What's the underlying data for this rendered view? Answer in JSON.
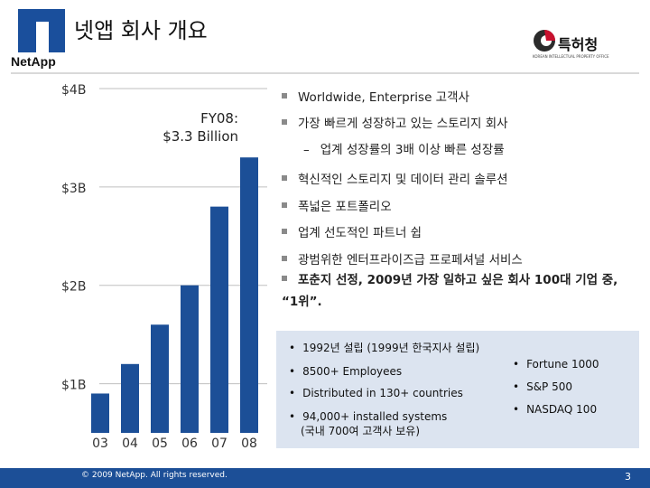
{
  "header": {
    "title": "넷앱 회사 개요",
    "logo_text": "NetApp",
    "partner_logo_text": "특허청",
    "partner_logo_sub": "KOREAN INTELLECTUAL PROPERTY OFFICE"
  },
  "chart_data": {
    "type": "bar",
    "categories": [
      "03",
      "04",
      "05",
      "06",
      "07",
      "08"
    ],
    "values": [
      0.9,
      1.2,
      1.6,
      2.0,
      2.8,
      3.3
    ],
    "ylim": [
      0.5,
      4.0
    ],
    "ytick_labels": [
      "$1B",
      "$2B",
      "$3B",
      "$4B"
    ],
    "ytick_values": [
      1,
      2,
      3,
      4
    ],
    "annotation": "FY08:\n$3.3 Billion",
    "annotation_line1": "FY08:",
    "annotation_line2": "$3.3 Billion",
    "bar_color": "#1c4f97",
    "grid": true
  },
  "bullets": [
    {
      "text": "Worldwide, Enterprise 고객사",
      "type": "main"
    },
    {
      "text": "가장 빠르게 성장하고 있는 스토리지 회사",
      "type": "main"
    },
    {
      "text": "업계 성장률의 3배 이상 빠른 성장률",
      "type": "sub",
      "marker": "–"
    },
    {
      "text": "혁신적인 스토리지 및 데이터 관리 솔루션",
      "type": "main"
    },
    {
      "text": "폭넓은 포트폴리오",
      "type": "main"
    },
    {
      "text": "업계 선도적인 파트너 쉽",
      "type": "main"
    },
    {
      "text": "광범위한 엔터프라이즈급 프로페셔널 서비스",
      "type": "main"
    },
    {
      "text": "포춘지 선정, 2009년 가장 일하고 싶은 회사 100대 기업 중, “1위”.",
      "type": "bold"
    }
  ],
  "info_box": {
    "left": [
      "1992년 설립 (1999년 한국지사 설립)",
      "8500+ Employees",
      "Distributed in 130+ countries",
      "94,000+ installed systems\n(국내 700여 고객사 보유)"
    ],
    "left_4a": "94,000+ installed systems",
    "left_4b": "(국내 700여 고객사 보유)",
    "right": [
      "Fortune 1000",
      "S&P 500",
      "NASDAQ 100"
    ],
    "bullet_glyph": "•"
  },
  "footer": {
    "copyright": "© 2009 NetApp. All rights reserved.",
    "page_number": "3"
  },
  "colors": {
    "brand_blue": "#1c4f97",
    "info_box_bg": "#dce4f0"
  }
}
